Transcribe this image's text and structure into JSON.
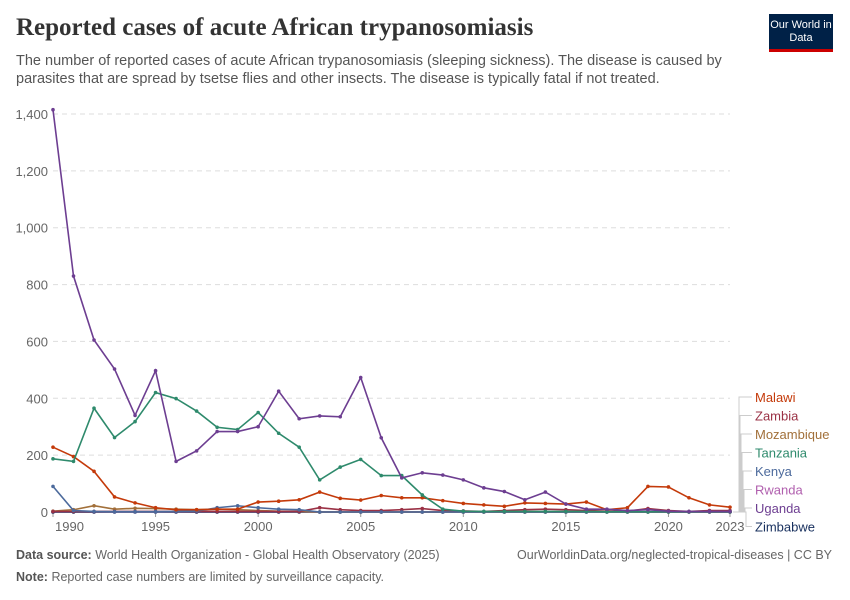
{
  "title": "Reported cases of acute African trypanosomiasis",
  "subtitle": "The number of reported cases of acute African trypanosomiasis (sleeping sickness). The disease is caused by parasites that are spread by tsetse flies and other insects. The disease is typically fatal if not treated.",
  "logo": "Our World in Data",
  "footer": {
    "source_label": "Data source:",
    "source": "World Health Organization - Global Health Observatory (2025)",
    "url": "OurWorldinData.org/neglected-tropical-diseases | CC BY",
    "note_label": "Note:",
    "note": "Reported case numbers are limited by surveillance capacity."
  },
  "chart_data": {
    "type": "line",
    "xlim": [
      1990,
      2023
    ],
    "ylim": [
      0,
      1400
    ],
    "x_ticks": [
      1990,
      1995,
      2000,
      2005,
      2010,
      2015,
      2020,
      2023
    ],
    "y_ticks": [
      0,
      200,
      400,
      600,
      800,
      1000,
      1200,
      1400
    ],
    "y_tick_labels": [
      "0",
      "200",
      "400",
      "600",
      "800",
      "1,000",
      "1,200",
      "1,400"
    ],
    "grid": "horizontal dashed",
    "legend": "right",
    "x": [
      1990,
      1991,
      1992,
      1993,
      1994,
      1995,
      1996,
      1997,
      1998,
      1999,
      2000,
      2001,
      2002,
      2003,
      2004,
      2005,
      2006,
      2007,
      2008,
      2009,
      2010,
      2011,
      2012,
      2013,
      2014,
      2015,
      2016,
      2017,
      2018,
      2019,
      2020,
      2021,
      2022,
      2023
    ],
    "series": [
      {
        "name": "Malawi",
        "color": "#c43a0a",
        "values": [
          228,
          195,
          143,
          53,
          32,
          15,
          8,
          8,
          10,
          10,
          35,
          38,
          43,
          70,
          48,
          42,
          58,
          50,
          50,
          40,
          30,
          25,
          20,
          32,
          30,
          28,
          35,
          8,
          15,
          90,
          88,
          50,
          25,
          17
        ]
      },
      {
        "name": "Zambia",
        "color": "#9a3145",
        "values": [
          2,
          2,
          2,
          2,
          2,
          2,
          2,
          2,
          2,
          2,
          2,
          2,
          2,
          15,
          8,
          5,
          5,
          8,
          12,
          5,
          4,
          2,
          5,
          8,
          10,
          8,
          5,
          3,
          3,
          12,
          5,
          2,
          5,
          5
        ]
      },
      {
        "name": "Mozambique",
        "color": "#a2703a",
        "values": [
          3,
          8,
          22,
          10,
          13,
          12,
          10,
          8,
          10,
          8,
          5,
          3,
          2,
          0,
          0,
          0,
          0,
          0,
          0,
          0,
          0,
          0,
          0,
          0,
          0,
          0,
          0,
          0,
          0,
          0,
          0,
          0,
          0,
          0
        ]
      },
      {
        "name": "Tanzania",
        "color": "#2e8a6c",
        "values": [
          187,
          178,
          365,
          262,
          318,
          420,
          399,
          355,
          298,
          290,
          350,
          277,
          228,
          113,
          158,
          185,
          128,
          128,
          60,
          10,
          3,
          2,
          2,
          2,
          2,
          2,
          2,
          1,
          1,
          1,
          1,
          1,
          1,
          1
        ]
      },
      {
        "name": "Kenya",
        "color": "#4c6a9c",
        "values": [
          90,
          5,
          2,
          1,
          1,
          1,
          2,
          3,
          15,
          22,
          15,
          10,
          8,
          0,
          0,
          0,
          0,
          0,
          0,
          0,
          0,
          0,
          0,
          0,
          0,
          0,
          0,
          0,
          0,
          0,
          0,
          0,
          0,
          0
        ]
      },
      {
        "name": "Rwanda",
        "color": "#b05fae",
        "values": [
          0,
          0,
          0,
          0,
          0,
          0,
          0,
          0,
          0,
          0,
          0,
          0,
          0,
          0,
          0,
          0,
          0,
          0,
          0,
          0,
          0,
          0,
          0,
          0,
          0,
          0,
          0,
          0,
          0,
          0,
          0,
          0,
          0,
          0
        ]
      },
      {
        "name": "Uganda",
        "color": "#6d3e91",
        "values": [
          1415,
          830,
          605,
          503,
          340,
          497,
          178,
          215,
          283,
          283,
          300,
          425,
          328,
          338,
          335,
          473,
          261,
          120,
          138,
          130,
          113,
          85,
          72,
          43,
          70,
          28,
          10,
          10,
          5,
          8,
          3,
          2,
          2,
          2
        ]
      },
      {
        "name": "Zimbabwe",
        "color": "#18305e",
        "values": [
          0,
          0,
          0,
          0,
          0,
          0,
          0,
          0,
          0,
          0,
          0,
          0,
          0,
          0,
          0,
          0,
          0,
          0,
          0,
          0,
          0,
          0,
          0,
          0,
          0,
          0,
          0,
          0,
          0,
          0,
          0,
          0,
          0,
          0
        ]
      }
    ]
  }
}
